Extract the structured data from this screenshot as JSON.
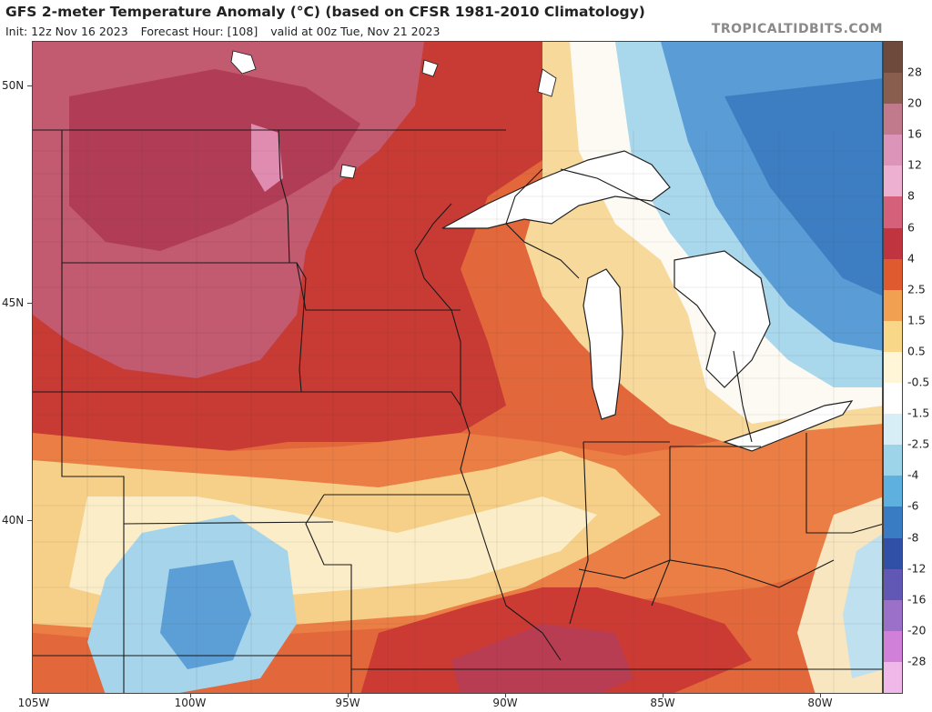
{
  "header": {
    "title": "GFS 2-meter Temperature Anomaly (°C) (based on CFSR 1981-2010 Climatology)",
    "init": "Init: 12z Nov 16 2023",
    "forecast_hour": "Forecast Hour: [108]",
    "valid": "valid at 00z Tue, Nov 21 2023",
    "brand": "TROPICALTIDBITS.COM"
  },
  "axes": {
    "latitudes": [
      "50N",
      "45N",
      "40N"
    ],
    "longitudes": [
      "105W",
      "100W",
      "95W",
      "90W",
      "85W",
      "80W"
    ]
  },
  "colorbar": {
    "labels": [
      "28",
      "20",
      "16",
      "12",
      "8",
      "6",
      "4",
      "2.5",
      "1.5",
      "0.5",
      "-0.5",
      "-1.5",
      "-2.5",
      "-4",
      "-6",
      "-8",
      "-12",
      "-16",
      "-20",
      "-28"
    ],
    "colors": [
      "#6e4a3c",
      "#8a5e4e",
      "#c07a8c",
      "#dc94b8",
      "#eeb0d0",
      "#d4607a",
      "#c03440",
      "#e05a30",
      "#f0a050",
      "#f8d888",
      "#fff6d8",
      "#ffffff",
      "#d8eef6",
      "#9ed4ea",
      "#5eb0de",
      "#3a7cc4",
      "#3050a8",
      "#6058b4",
      "#9a70c8",
      "#d080d8",
      "#f0b8e8"
    ]
  },
  "map": {
    "colors": {
      "hot": "#b83848",
      "pink": "#c8607a",
      "deep_red": "#c42a2a",
      "red": "#d8442e",
      "orange": "#e87a3c",
      "light_orange": "#f4aa60",
      "yellow": "#f8d890",
      "pale": "#fff0cc",
      "white": "#fcfcf4",
      "light_blue": "#b4dcec",
      "blue": "#5aa0d8",
      "dark_blue": "#3a78c0",
      "water": "#ffffff"
    }
  }
}
